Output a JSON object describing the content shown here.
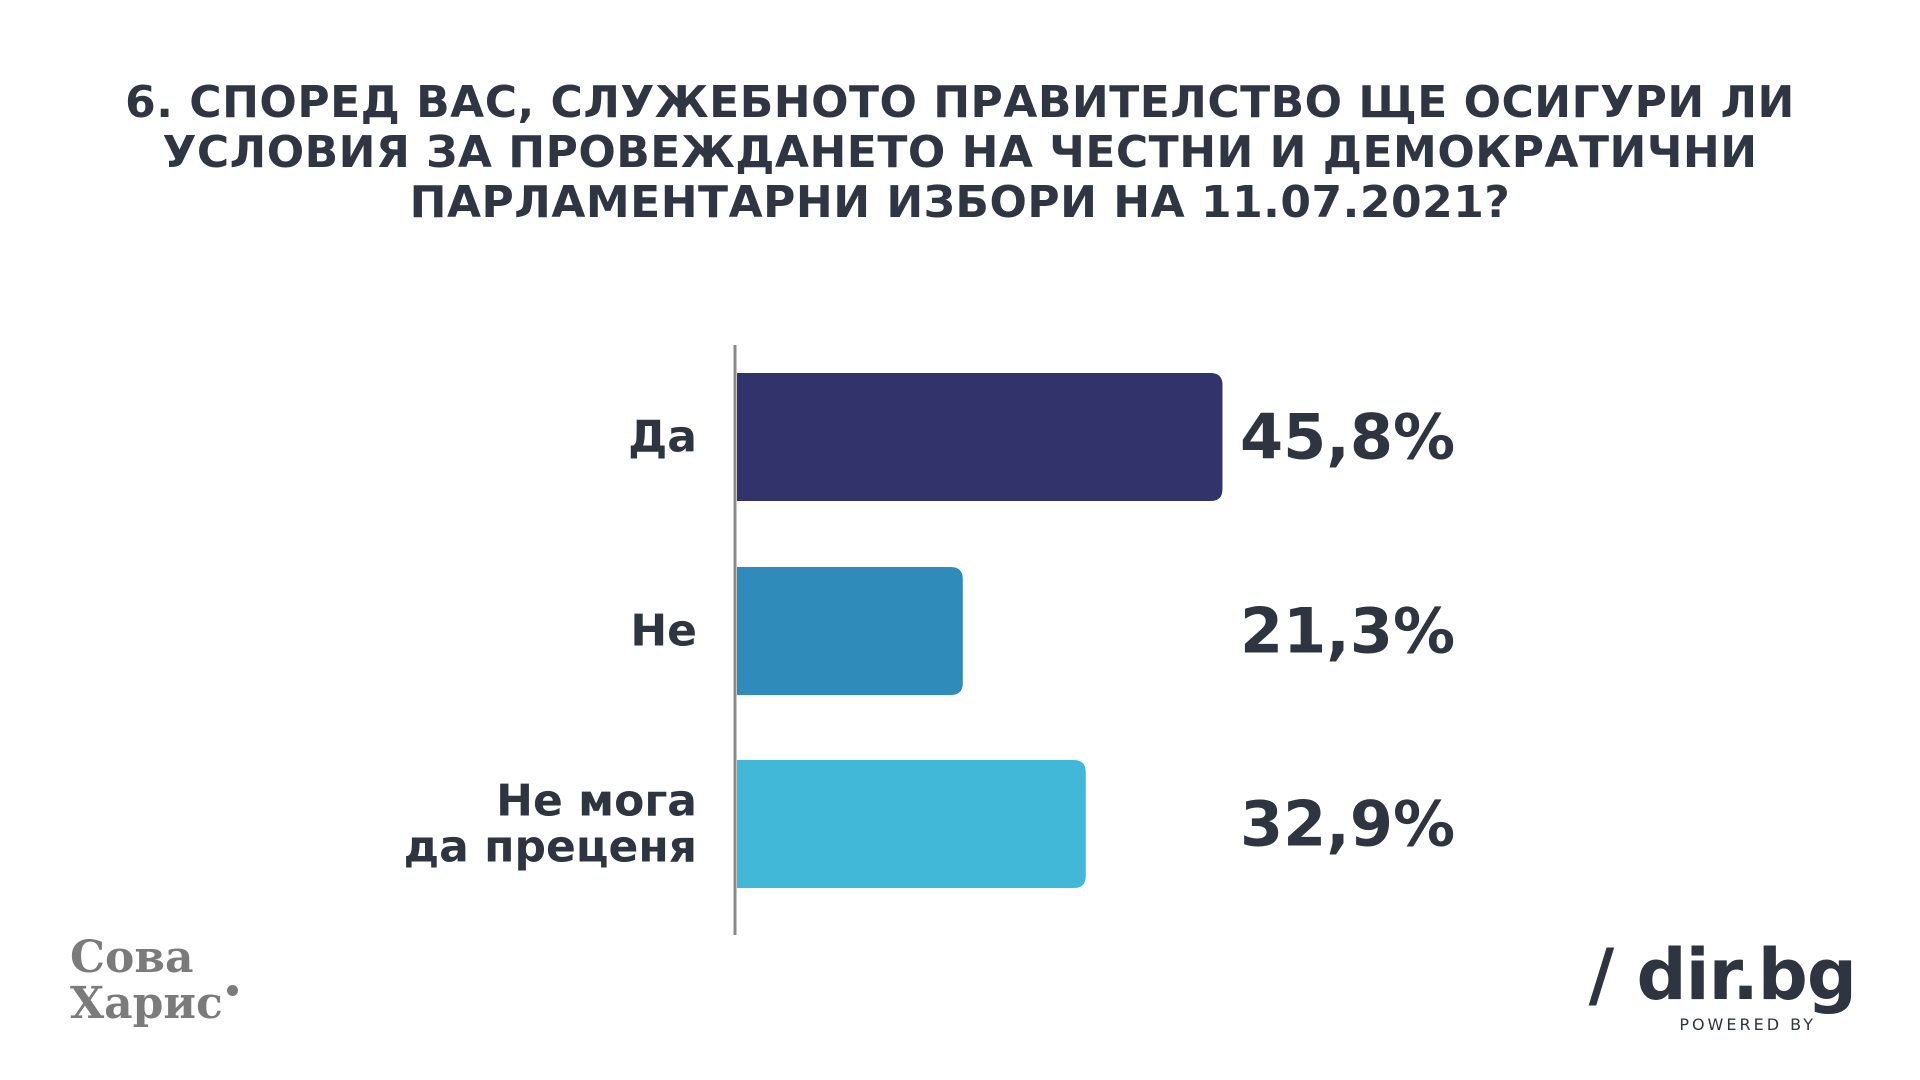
{
  "title_lines": [
    "6. СПОРЕД ВАС, СЛУЖЕБНОТО ПРАВИТЕЛСТВО ЩЕ ОСИГУРИ ЛИ",
    "УСЛОВИЯ ЗА ПРОВЕЖДАНЕТО НА ЧЕСТНИ И ДЕМОКРАТИЧНИ",
    "ПАРЛАМЕНТАРНИ ИЗБОРИ НА 11.07.2021?"
  ],
  "chart_data": {
    "type": "bar",
    "orientation": "horizontal",
    "title": "6. СПОРЕД ВАС, СЛУЖЕБНОТО ПРАВИТЕЛСТВО ЩЕ ОСИГУРИ ЛИ УСЛОВИЯ ЗА ПРОВЕЖДАНЕТО НА ЧЕСТНИ И ДЕМОКРАТИЧНИ ПАРЛАМЕНТАРНИ ИЗБОРИ НА 11.07.2021?",
    "categories": [
      [
        "Да"
      ],
      [
        "Не"
      ],
      [
        "Не мога",
        "да преценя"
      ]
    ],
    "values": [
      45.8,
      21.3,
      32.9
    ],
    "value_labels": [
      "45,8%",
      "21,3%",
      "32,9%"
    ],
    "colors": [
      "#31336a",
      "#2e8bba",
      "#41b8d8"
    ],
    "xlim": [
      0,
      100
    ],
    "grid": false,
    "legend": "none"
  },
  "logos": {
    "left_line1": "Сова",
    "left_line2": "Харис",
    "right_main": "/ dir.bg",
    "right_sub": "POWERED BY"
  }
}
